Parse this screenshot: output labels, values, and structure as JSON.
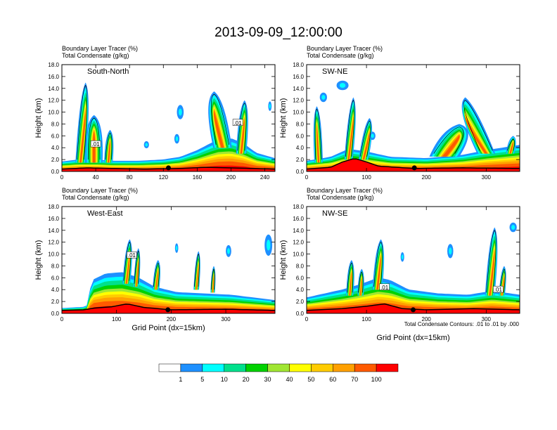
{
  "title": "2013-09-09_12:00:00",
  "colors": {
    "white": "#ffffff",
    "blue": "#1e90ff",
    "cyan": "#00ffff",
    "aquagreen": "#00e08c",
    "green": "#00d200",
    "yellowgreen": "#a0e632",
    "yellow": "#ffff00",
    "gold": "#ffcc00",
    "orange": "#ffa000",
    "redorange": "#ff5a00",
    "red": "#ff0000",
    "terrain": "#000000"
  },
  "colorbar": {
    "labels": [
      "1",
      "5",
      "10",
      "20",
      "30",
      "40",
      "50",
      "60",
      "70",
      "100"
    ],
    "colors": [
      "#ffffff",
      "#1e90ff",
      "#00ffff",
      "#00e08c",
      "#00d200",
      "#a0e632",
      "#ffff00",
      "#ffcc00",
      "#ffa000",
      "#ff5a00",
      "#ff0000"
    ]
  },
  "contour_note": "Total Condensate Contours: .01 to .01 by .000",
  "chart_data": [
    {
      "type": "heatmap",
      "panel_label": "South-North",
      "subtitle1": "Boundary Layer Tracer   (%)",
      "subtitle2": "Total Condensate   (g/kg)",
      "ylabel": "Height (km)",
      "xlabel": "",
      "ylim": [
        0,
        18
      ],
      "xlim": [
        0,
        252
      ],
      "yticks": [
        "0.0",
        "2.0",
        "4.0",
        "6.0",
        "8.0",
        "10.0",
        "12.0",
        "14.0",
        "16.0",
        "18.0"
      ],
      "xticks": [
        {
          "v": 0,
          "label": "0"
        },
        {
          "v": 40,
          "label": "40"
        },
        {
          "v": 80,
          "label": "80"
        },
        {
          "v": 120,
          "label": "120"
        },
        {
          "v": 160,
          "label": "160"
        },
        {
          "v": 200,
          "label": "200"
        },
        {
          "v": 240,
          "label": "240"
        }
      ],
      "contour_labels": [
        {
          "x": 40,
          "y": 4.6,
          "label": ".01"
        },
        {
          "x": 208,
          "y": 8.2,
          "label": ".01"
        }
      ],
      "marker_x": 126,
      "terrain": [
        [
          0,
          0.4
        ],
        [
          30,
          0.6
        ],
        [
          60,
          0.5
        ],
        [
          100,
          0.4
        ],
        [
          140,
          0.5
        ],
        [
          170,
          0.7
        ],
        [
          200,
          0.6
        ],
        [
          252,
          0.4
        ]
      ],
      "bl_top": [
        [
          0,
          1.5
        ],
        [
          20,
          1.8
        ],
        [
          40,
          1.8
        ],
        [
          60,
          1.6
        ],
        [
          90,
          1.6
        ],
        [
          120,
          1.8
        ],
        [
          140,
          2.2
        ],
        [
          160,
          3.2
        ],
        [
          175,
          4.2
        ],
        [
          185,
          4.8
        ],
        [
          200,
          5.0
        ],
        [
          215,
          4.2
        ],
        [
          230,
          2.8
        ],
        [
          252,
          2.0
        ]
      ],
      "plumes": [
        {
          "x": 22,
          "w": 12,
          "top": 15.0,
          "base": 1.5,
          "lean": 6
        },
        {
          "x": 55,
          "w": 10,
          "top": 7.0,
          "base": 1.5,
          "lean": 2
        },
        {
          "x": 38,
          "w": 20,
          "top": 9.5,
          "base": 1.5,
          "lean": 0
        },
        {
          "x": 190,
          "w": 22,
          "top": 13.5,
          "base": 4.0,
          "lean": -10
        },
        {
          "x": 212,
          "w": 12,
          "top": 12.0,
          "base": 3.0,
          "lean": 4
        }
      ],
      "blobs": [
        {
          "x": 140,
          "y": 10.0,
          "rx": 4,
          "ry": 1.2
        },
        {
          "x": 136,
          "y": 5.5,
          "rx": 3,
          "ry": 0.8
        },
        {
          "x": 100,
          "y": 4.5,
          "rx": 3,
          "ry": 0.6
        },
        {
          "x": 246,
          "y": 11.0,
          "rx": 2,
          "ry": 0.8
        }
      ]
    },
    {
      "type": "heatmap",
      "panel_label": "SW-NE",
      "subtitle1": "Boundary Layer Tracer   (%)",
      "subtitle2": "Total Condensate   (g/kg)",
      "ylabel": "Height (km)",
      "xlabel": "",
      "ylim": [
        0,
        18
      ],
      "xlim": [
        0,
        356
      ],
      "yticks": [
        "0.0",
        "2.0",
        "4.0",
        "6.0",
        "8.0",
        "10.0",
        "12.0",
        "14.0",
        "16.0",
        "18.0"
      ],
      "xticks": [
        {
          "v": 0,
          "label": "0"
        },
        {
          "v": 100,
          "label": "100"
        },
        {
          "v": 200,
          "label": "200"
        },
        {
          "v": 300,
          "label": "300"
        }
      ],
      "contour_labels": [],
      "marker_x": 180,
      "terrain": [
        [
          0,
          0.4
        ],
        [
          40,
          0.7
        ],
        [
          60,
          1.6
        ],
        [
          80,
          2.2
        ],
        [
          100,
          1.6
        ],
        [
          120,
          0.9
        ],
        [
          180,
          0.5
        ],
        [
          260,
          0.6
        ],
        [
          356,
          0.5
        ]
      ],
      "bl_top": [
        [
          0,
          1.6
        ],
        [
          40,
          2.2
        ],
        [
          70,
          3.4
        ],
        [
          100,
          3.0
        ],
        [
          140,
          2.2
        ],
        [
          200,
          2.0
        ],
        [
          260,
          2.5
        ],
        [
          300,
          3.2
        ],
        [
          356,
          4.0
        ]
      ],
      "plumes": [
        {
          "x": 70,
          "w": 14,
          "top": 12.5,
          "base": 2.0,
          "lean": 8
        },
        {
          "x": 95,
          "w": 16,
          "top": 9.0,
          "base": 2.0,
          "lean": 10
        },
        {
          "x": 20,
          "w": 14,
          "top": 11.0,
          "base": 1.5,
          "lean": -3
        },
        {
          "x": 230,
          "w": 50,
          "top": 8.0,
          "base": 2.5,
          "lean": 25
        },
        {
          "x": 300,
          "w": 30,
          "top": 12.5,
          "base": 3.0,
          "lean": -35
        },
        {
          "x": 340,
          "w": 14,
          "top": 6.0,
          "base": 3.0,
          "lean": 5
        }
      ],
      "blobs": [
        {
          "x": 60,
          "y": 14.5,
          "rx": 10,
          "ry": 0.8
        },
        {
          "x": 28,
          "y": 12.5,
          "rx": 6,
          "ry": 0.8
        },
        {
          "x": 110,
          "y": 6.0,
          "rx": 5,
          "ry": 0.7
        }
      ]
    },
    {
      "type": "heatmap",
      "panel_label": "West-East",
      "subtitle1": "Boundary Layer Tracer   (%)",
      "subtitle2": "Total Condensate   (g/kg)",
      "ylabel": "Height (km)",
      "xlabel": "Grid Point (dx=15km)",
      "ylim": [
        0,
        18
      ],
      "xlim": [
        0,
        390
      ],
      "yticks": [
        "0.0",
        "2.0",
        "4.0",
        "6.0",
        "8.0",
        "10.0",
        "12.0",
        "14.0",
        "16.0",
        "18.0"
      ],
      "xticks": [
        {
          "v": 0,
          "label": "0"
        },
        {
          "v": 100,
          "label": "100"
        },
        {
          "v": 200,
          "label": "200"
        },
        {
          "v": 300,
          "label": "300"
        }
      ],
      "contour_labels": [
        {
          "x": 128,
          "y": 9.8,
          "label": ".01"
        }
      ],
      "marker_x": 194,
      "terrain": [
        [
          0,
          0.5
        ],
        [
          40,
          0.6
        ],
        [
          60,
          0.9
        ],
        [
          90,
          1.1
        ],
        [
          120,
          1.6
        ],
        [
          150,
          1.0
        ],
        [
          200,
          0.6
        ],
        [
          300,
          0.7
        ],
        [
          390,
          0.5
        ]
      ],
      "bl_top": [
        [
          0,
          0.8
        ],
        [
          45,
          1.0
        ],
        [
          55,
          5.0
        ],
        [
          80,
          6.0
        ],
        [
          110,
          6.2
        ],
        [
          140,
          5.4
        ],
        [
          170,
          4.0
        ],
        [
          210,
          3.2
        ],
        [
          260,
          3.0
        ],
        [
          310,
          2.8
        ],
        [
          350,
          2.4
        ],
        [
          390,
          2.0
        ]
      ],
      "plumes": [
        {
          "x": 118,
          "w": 14,
          "top": 12.5,
          "base": 5.0,
          "lean": 6
        },
        {
          "x": 136,
          "w": 10,
          "top": 11.0,
          "base": 4.5,
          "lean": 4
        },
        {
          "x": 172,
          "w": 12,
          "top": 9.0,
          "base": 4.0,
          "lean": 4
        },
        {
          "x": 246,
          "w": 10,
          "top": 10.5,
          "base": 4.0,
          "lean": 4
        },
        {
          "x": 276,
          "w": 8,
          "top": 8.0,
          "base": 3.5,
          "lean": 2
        }
      ],
      "blobs": [
        {
          "x": 305,
          "y": 10.5,
          "rx": 5,
          "ry": 1.0
        },
        {
          "x": 378,
          "y": 11.5,
          "rx": 7,
          "ry": 1.8
        },
        {
          "x": 210,
          "y": 11.0,
          "rx": 3,
          "ry": 0.8
        }
      ]
    },
    {
      "type": "heatmap",
      "panel_label": "NW-SE",
      "subtitle1": "Boundary Layer Tracer   (%)",
      "subtitle2": "Total Condensate   (g/kg)",
      "ylabel": "Height (km)",
      "xlabel": "Grid Point (dx=15km)",
      "ylim": [
        0,
        18
      ],
      "xlim": [
        0,
        356
      ],
      "yticks": [
        "0.0",
        "2.0",
        "4.0",
        "6.0",
        "8.0",
        "10.0",
        "12.0",
        "14.0",
        "16.0",
        "18.0"
      ],
      "xticks": [
        {
          "v": 0,
          "label": "0"
        },
        {
          "v": 100,
          "label": "100"
        },
        {
          "v": 200,
          "label": "200"
        },
        {
          "v": 300,
          "label": "300"
        }
      ],
      "contour_labels": [
        {
          "x": 130,
          "y": 4.4,
          "label": ".01"
        },
        {
          "x": 320,
          "y": 4.0,
          "label": ".01"
        }
      ],
      "marker_x": 178,
      "terrain": [
        [
          0,
          0.5
        ],
        [
          60,
          0.8
        ],
        [
          100,
          1.2
        ],
        [
          130,
          1.6
        ],
        [
          160,
          0.8
        ],
        [
          200,
          0.6
        ],
        [
          280,
          0.8
        ],
        [
          356,
          0.6
        ]
      ],
      "bl_top": [
        [
          0,
          2.4
        ],
        [
          30,
          3.0
        ],
        [
          60,
          3.6
        ],
        [
          90,
          4.4
        ],
        [
          120,
          5.4
        ],
        [
          140,
          5.0
        ],
        [
          170,
          3.6
        ],
        [
          220,
          3.0
        ],
        [
          270,
          2.8
        ],
        [
          310,
          3.4
        ],
        [
          356,
          2.8
        ]
      ],
      "plumes": [
        {
          "x": 72,
          "w": 12,
          "top": 9.0,
          "base": 3.0,
          "lean": 3
        },
        {
          "x": 118,
          "w": 16,
          "top": 12.5,
          "base": 4.0,
          "lean": 6
        },
        {
          "x": 90,
          "w": 10,
          "top": 7.5,
          "base": 3.0,
          "lean": 2
        },
        {
          "x": 306,
          "w": 16,
          "top": 14.5,
          "base": 3.0,
          "lean": 8
        },
        {
          "x": 326,
          "w": 10,
          "top": 8.0,
          "base": 3.0,
          "lean": 4
        }
      ],
      "blobs": [
        {
          "x": 240,
          "y": 10.5,
          "rx": 5,
          "ry": 1.2
        },
        {
          "x": 345,
          "y": 14.5,
          "rx": 6,
          "ry": 0.8
        },
        {
          "x": 160,
          "y": 9.5,
          "rx": 3,
          "ry": 0.8
        }
      ]
    }
  ]
}
